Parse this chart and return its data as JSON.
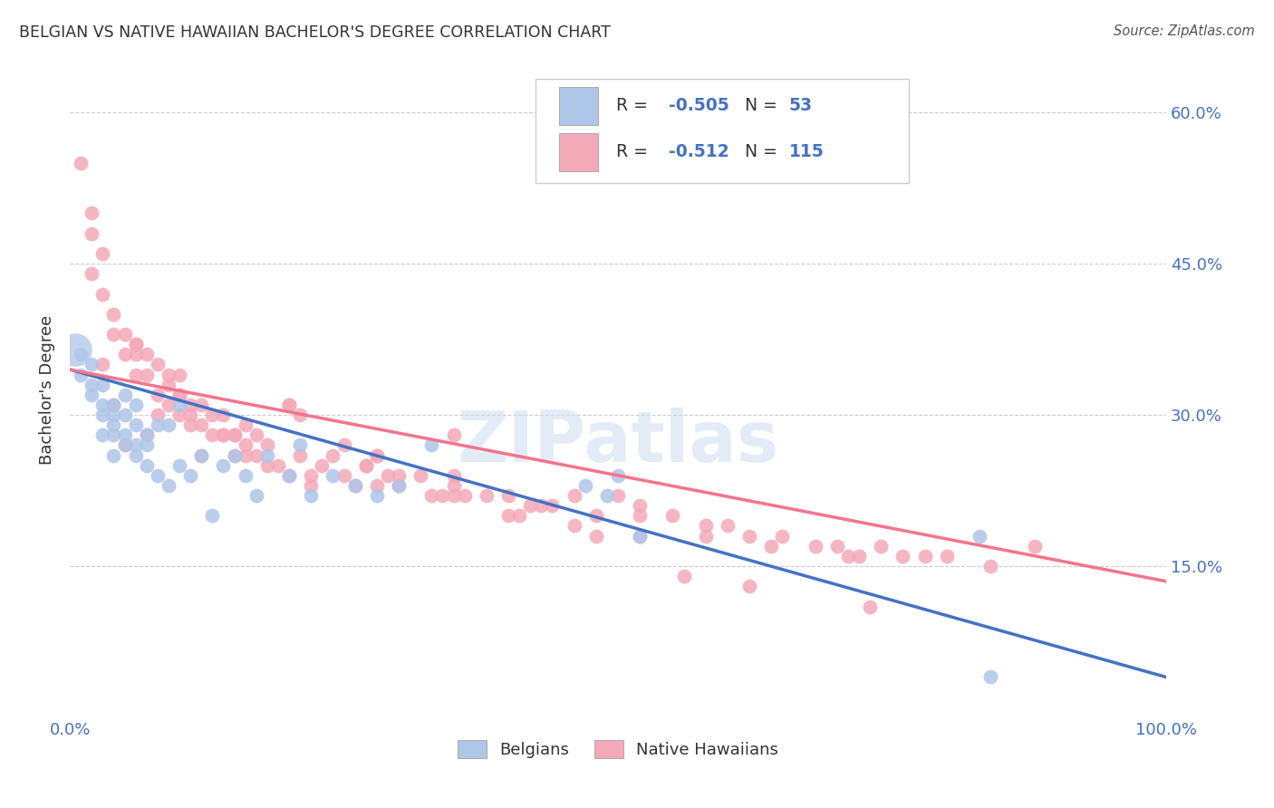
{
  "title": "BELGIAN VS NATIVE HAWAIIAN BACHELOR'S DEGREE CORRELATION CHART",
  "source": "Source: ZipAtlas.com",
  "ylabel": "Bachelor's Degree",
  "xlim": [
    0,
    1
  ],
  "ylim": [
    0,
    0.65
  ],
  "grid_color": "#cccccc",
  "background_color": "#ffffff",
  "belgian_color": "#aec6e8",
  "hawaiian_color": "#f4a9b8",
  "belgian_line_color": "#4472c4",
  "hawaiian_line_color": "#f4748c",
  "legend_R_color": "#333333",
  "legend_N_color": "#4472c4",
  "watermark": "ZIPatlas",
  "belgians_label": "Belgians",
  "hawaiians_label": "Native Hawaiians",
  "belgian_line": [
    0.345,
    0.04
  ],
  "hawaiian_line": [
    0.345,
    0.135
  ],
  "belgian_scatter_x": [
    0.01,
    0.01,
    0.02,
    0.02,
    0.02,
    0.03,
    0.03,
    0.03,
    0.03,
    0.04,
    0.04,
    0.04,
    0.04,
    0.04,
    0.05,
    0.05,
    0.05,
    0.05,
    0.06,
    0.06,
    0.06,
    0.06,
    0.07,
    0.07,
    0.07,
    0.08,
    0.08,
    0.09,
    0.09,
    0.1,
    0.1,
    0.11,
    0.12,
    0.13,
    0.14,
    0.15,
    0.16,
    0.17,
    0.18,
    0.2,
    0.21,
    0.22,
    0.24,
    0.26,
    0.28,
    0.3,
    0.33,
    0.47,
    0.49,
    0.5,
    0.52,
    0.83,
    0.84
  ],
  "belgian_scatter_y": [
    0.36,
    0.34,
    0.33,
    0.35,
    0.32,
    0.31,
    0.33,
    0.3,
    0.28,
    0.29,
    0.3,
    0.28,
    0.26,
    0.31,
    0.28,
    0.3,
    0.27,
    0.32,
    0.27,
    0.29,
    0.26,
    0.31,
    0.27,
    0.25,
    0.28,
    0.24,
    0.29,
    0.23,
    0.29,
    0.25,
    0.31,
    0.24,
    0.26,
    0.2,
    0.25,
    0.26,
    0.24,
    0.22,
    0.26,
    0.24,
    0.27,
    0.22,
    0.24,
    0.23,
    0.22,
    0.23,
    0.27,
    0.23,
    0.22,
    0.24,
    0.18,
    0.18,
    0.04
  ],
  "hawaiian_scatter_x": [
    0.01,
    0.02,
    0.02,
    0.02,
    0.03,
    0.03,
    0.04,
    0.04,
    0.05,
    0.05,
    0.06,
    0.06,
    0.06,
    0.07,
    0.07,
    0.08,
    0.08,
    0.09,
    0.09,
    0.1,
    0.1,
    0.1,
    0.11,
    0.11,
    0.12,
    0.12,
    0.13,
    0.13,
    0.14,
    0.14,
    0.15,
    0.15,
    0.16,
    0.17,
    0.17,
    0.18,
    0.18,
    0.19,
    0.2,
    0.21,
    0.22,
    0.23,
    0.24,
    0.25,
    0.26,
    0.27,
    0.28,
    0.29,
    0.3,
    0.32,
    0.33,
    0.35,
    0.36,
    0.38,
    0.4,
    0.42,
    0.44,
    0.46,
    0.48,
    0.5,
    0.52,
    0.55,
    0.58,
    0.6,
    0.62,
    0.65,
    0.68,
    0.7,
    0.72,
    0.74,
    0.76,
    0.78,
    0.8,
    0.84,
    0.88,
    0.03,
    0.05,
    0.08,
    0.12,
    0.16,
    0.2,
    0.25,
    0.3,
    0.35,
    0.4,
    0.46,
    0.52,
    0.58,
    0.64,
    0.71,
    0.04,
    0.07,
    0.11,
    0.16,
    0.22,
    0.28,
    0.34,
    0.41,
    0.48,
    0.56,
    0.06,
    0.1,
    0.15,
    0.21,
    0.28,
    0.35,
    0.43,
    0.52,
    0.62,
    0.73,
    0.09,
    0.14,
    0.2,
    0.27,
    0.35
  ],
  "hawaiian_scatter_y": [
    0.55,
    0.5,
    0.44,
    0.48,
    0.42,
    0.46,
    0.4,
    0.38,
    0.36,
    0.38,
    0.36,
    0.34,
    0.37,
    0.34,
    0.36,
    0.32,
    0.35,
    0.31,
    0.33,
    0.3,
    0.32,
    0.34,
    0.29,
    0.31,
    0.29,
    0.31,
    0.28,
    0.3,
    0.28,
    0.3,
    0.26,
    0.28,
    0.27,
    0.26,
    0.28,
    0.25,
    0.27,
    0.25,
    0.24,
    0.26,
    0.24,
    0.25,
    0.26,
    0.24,
    0.23,
    0.25,
    0.23,
    0.24,
    0.23,
    0.24,
    0.22,
    0.23,
    0.22,
    0.22,
    0.22,
    0.21,
    0.21,
    0.22,
    0.2,
    0.22,
    0.2,
    0.2,
    0.19,
    0.19,
    0.18,
    0.18,
    0.17,
    0.17,
    0.16,
    0.17,
    0.16,
    0.16,
    0.16,
    0.15,
    0.17,
    0.35,
    0.27,
    0.3,
    0.26,
    0.29,
    0.31,
    0.27,
    0.24,
    0.22,
    0.2,
    0.19,
    0.21,
    0.18,
    0.17,
    0.16,
    0.31,
    0.28,
    0.3,
    0.26,
    0.23,
    0.26,
    0.22,
    0.2,
    0.18,
    0.14,
    0.37,
    0.32,
    0.28,
    0.3,
    0.26,
    0.24,
    0.21,
    0.18,
    0.13,
    0.11,
    0.34,
    0.28,
    0.31,
    0.25,
    0.28
  ]
}
